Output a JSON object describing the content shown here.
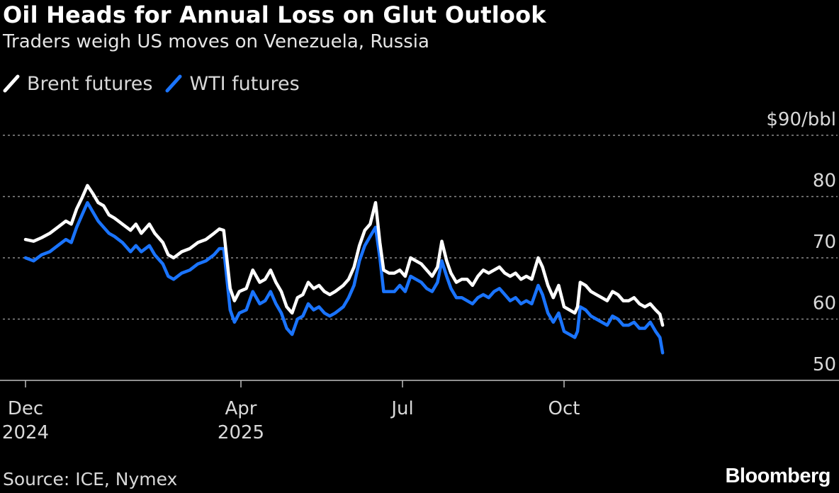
{
  "title": "Oil Heads for Annual Loss on Glut Outlook",
  "subtitle": "Traders weigh US moves on Venezuela, Russia",
  "source": "Source: ICE, Nymex",
  "brand": "Bloomberg",
  "colors": {
    "background": "#000000",
    "brent": "#ffffff",
    "wti": "#1a74ff",
    "grid": "#8c8c8c",
    "text": "#d9d9d9"
  },
  "chart_data": {
    "type": "line",
    "title": "Oil Heads for Annual Loss on Glut Outlook",
    "subtitle": "Traders weigh US moves on Venezuela, Russia",
    "xlabel": "",
    "ylabel": "$/bbl",
    "ylim": [
      50,
      90
    ],
    "yticks": [
      50,
      60,
      70,
      80,
      90
    ],
    "ytick_labels": [
      "50",
      "60",
      "70",
      "80",
      "$90/bbl"
    ],
    "grid": true,
    "legend_placement": "top-left",
    "x_ticks": [
      {
        "month_index": 0,
        "label": "Dec",
        "year": "2024"
      },
      {
        "month_index": 4,
        "label": "Apr",
        "year": "2025"
      },
      {
        "month_index": 7,
        "label": "Jul",
        "year": ""
      },
      {
        "month_index": 10,
        "label": "Oct",
        "year": ""
      }
    ],
    "x_unit": "months since Dec 1, 2024",
    "series": [
      {
        "name": "Brent futures",
        "color": "#ffffff",
        "points": [
          [
            0.0,
            73.0
          ],
          [
            0.15,
            72.7
          ],
          [
            0.3,
            73.3
          ],
          [
            0.45,
            74.0
          ],
          [
            0.6,
            75.0
          ],
          [
            0.75,
            76.0
          ],
          [
            0.85,
            75.5
          ],
          [
            0.95,
            78.0
          ],
          [
            1.05,
            79.8
          ],
          [
            1.15,
            81.8
          ],
          [
            1.25,
            80.5
          ],
          [
            1.35,
            79.0
          ],
          [
            1.45,
            78.5
          ],
          [
            1.55,
            77.0
          ],
          [
            1.65,
            76.5
          ],
          [
            1.8,
            75.5
          ],
          [
            1.95,
            74.5
          ],
          [
            2.05,
            75.5
          ],
          [
            2.15,
            74.0
          ],
          [
            2.3,
            75.5
          ],
          [
            2.4,
            74.0
          ],
          [
            2.55,
            72.5
          ],
          [
            2.65,
            70.5
          ],
          [
            2.75,
            70.0
          ],
          [
            2.9,
            71.0
          ],
          [
            3.05,
            71.5
          ],
          [
            3.2,
            72.5
          ],
          [
            3.35,
            73.0
          ],
          [
            3.5,
            74.0
          ],
          [
            3.6,
            74.7
          ],
          [
            3.68,
            74.5
          ],
          [
            3.8,
            65.0
          ],
          [
            3.88,
            63.0
          ],
          [
            3.97,
            64.5
          ],
          [
            4.1,
            65.0
          ],
          [
            4.22,
            68.0
          ],
          [
            4.35,
            66.0
          ],
          [
            4.45,
            66.5
          ],
          [
            4.55,
            68.0
          ],
          [
            4.65,
            66.0
          ],
          [
            4.75,
            64.5
          ],
          [
            4.85,
            62.0
          ],
          [
            4.95,
            61.0
          ],
          [
            5.05,
            63.5
          ],
          [
            5.15,
            64.0
          ],
          [
            5.25,
            66.0
          ],
          [
            5.35,
            65.0
          ],
          [
            5.45,
            65.5
          ],
          [
            5.55,
            64.5
          ],
          [
            5.65,
            64.0
          ],
          [
            5.75,
            64.5
          ],
          [
            5.9,
            65.5
          ],
          [
            6.0,
            66.5
          ],
          [
            6.1,
            68.5
          ],
          [
            6.2,
            72.0
          ],
          [
            6.3,
            74.5
          ],
          [
            6.4,
            75.5
          ],
          [
            6.5,
            79.0
          ],
          [
            6.58,
            72.5
          ],
          [
            6.65,
            68.0
          ],
          [
            6.75,
            67.5
          ],
          [
            6.85,
            67.5
          ],
          [
            6.95,
            68.0
          ],
          [
            7.05,
            67.0
          ],
          [
            7.15,
            70.0
          ],
          [
            7.25,
            69.5
          ],
          [
            7.35,
            69.0
          ],
          [
            7.45,
            68.0
          ],
          [
            7.55,
            67.0
          ],
          [
            7.65,
            68.5
          ],
          [
            7.73,
            72.7
          ],
          [
            7.82,
            69.5
          ],
          [
            7.9,
            67.5
          ],
          [
            8.0,
            66.0
          ],
          [
            8.1,
            66.5
          ],
          [
            8.2,
            66.5
          ],
          [
            8.3,
            65.5
          ],
          [
            8.4,
            67.0
          ],
          [
            8.5,
            68.0
          ],
          [
            8.6,
            67.5
          ],
          [
            8.7,
            68.0
          ],
          [
            8.8,
            68.5
          ],
          [
            8.9,
            67.5
          ],
          [
            9.0,
            67.0
          ],
          [
            9.1,
            67.5
          ],
          [
            9.2,
            66.5
          ],
          [
            9.3,
            67.0
          ],
          [
            9.4,
            66.5
          ],
          [
            9.52,
            70.0
          ],
          [
            9.6,
            68.5
          ],
          [
            9.7,
            65.5
          ],
          [
            9.8,
            63.5
          ],
          [
            9.9,
            65.5
          ],
          [
            10.0,
            62.0
          ],
          [
            10.1,
            61.5
          ],
          [
            10.2,
            61.0
          ],
          [
            10.25,
            62.0
          ],
          [
            10.3,
            66.0
          ],
          [
            10.4,
            65.5
          ],
          [
            10.5,
            64.5
          ],
          [
            10.6,
            64.0
          ],
          [
            10.7,
            63.5
          ],
          [
            10.8,
            63.0
          ],
          [
            10.9,
            64.5
          ],
          [
            11.0,
            64.0
          ],
          [
            11.1,
            63.0
          ],
          [
            11.2,
            63.0
          ],
          [
            11.3,
            63.5
          ],
          [
            11.4,
            62.5
          ],
          [
            11.5,
            62.0
          ],
          [
            11.6,
            62.5
          ],
          [
            11.7,
            61.5
          ],
          [
            11.78,
            60.8
          ],
          [
            11.83,
            59.0
          ]
        ]
      },
      {
        "name": "WTI futures",
        "color": "#1a74ff",
        "points": [
          [
            0.0,
            70.0
          ],
          [
            0.15,
            69.5
          ],
          [
            0.3,
            70.5
          ],
          [
            0.45,
            71.0
          ],
          [
            0.6,
            72.0
          ],
          [
            0.75,
            73.0
          ],
          [
            0.85,
            72.5
          ],
          [
            0.95,
            75.0
          ],
          [
            1.05,
            77.0
          ],
          [
            1.15,
            79.0
          ],
          [
            1.25,
            77.5
          ],
          [
            1.35,
            76.0
          ],
          [
            1.45,
            75.0
          ],
          [
            1.55,
            74.0
          ],
          [
            1.65,
            73.5
          ],
          [
            1.8,
            72.5
          ],
          [
            1.95,
            71.0
          ],
          [
            2.05,
            72.0
          ],
          [
            2.15,
            71.0
          ],
          [
            2.3,
            72.0
          ],
          [
            2.4,
            70.5
          ],
          [
            2.55,
            69.0
          ],
          [
            2.65,
            67.0
          ],
          [
            2.75,
            66.5
          ],
          [
            2.9,
            67.5
          ],
          [
            3.05,
            68.0
          ],
          [
            3.2,
            69.0
          ],
          [
            3.35,
            69.5
          ],
          [
            3.5,
            70.5
          ],
          [
            3.6,
            71.5
          ],
          [
            3.68,
            71.5
          ],
          [
            3.8,
            61.5
          ],
          [
            3.88,
            59.5
          ],
          [
            3.97,
            61.0
          ],
          [
            4.1,
            61.5
          ],
          [
            4.22,
            64.5
          ],
          [
            4.35,
            62.5
          ],
          [
            4.45,
            63.0
          ],
          [
            4.55,
            64.5
          ],
          [
            4.65,
            62.5
          ],
          [
            4.75,
            61.0
          ],
          [
            4.85,
            58.5
          ],
          [
            4.95,
            57.5
          ],
          [
            5.05,
            60.0
          ],
          [
            5.15,
            60.5
          ],
          [
            5.25,
            62.5
          ],
          [
            5.35,
            61.5
          ],
          [
            5.45,
            62.0
          ],
          [
            5.55,
            61.0
          ],
          [
            5.65,
            60.5
          ],
          [
            5.75,
            61.0
          ],
          [
            5.9,
            62.0
          ],
          [
            6.0,
            63.5
          ],
          [
            6.1,
            65.5
          ],
          [
            6.2,
            69.5
          ],
          [
            6.3,
            72.0
          ],
          [
            6.4,
            73.5
          ],
          [
            6.5,
            75.0
          ],
          [
            6.58,
            70.0
          ],
          [
            6.65,
            64.5
          ],
          [
            6.75,
            64.5
          ],
          [
            6.85,
            64.5
          ],
          [
            6.95,
            65.5
          ],
          [
            7.05,
            64.5
          ],
          [
            7.15,
            67.0
          ],
          [
            7.25,
            66.5
          ],
          [
            7.35,
            66.0
          ],
          [
            7.45,
            65.0
          ],
          [
            7.55,
            64.5
          ],
          [
            7.65,
            66.0
          ],
          [
            7.73,
            69.5
          ],
          [
            7.82,
            67.0
          ],
          [
            7.9,
            65.0
          ],
          [
            8.0,
            63.5
          ],
          [
            8.1,
            63.5
          ],
          [
            8.2,
            63.0
          ],
          [
            8.3,
            62.5
          ],
          [
            8.4,
            63.5
          ],
          [
            8.5,
            64.0
          ],
          [
            8.6,
            63.5
          ],
          [
            8.7,
            64.5
          ],
          [
            8.8,
            65.0
          ],
          [
            8.9,
            64.0
          ],
          [
            9.0,
            63.0
          ],
          [
            9.1,
            63.5
          ],
          [
            9.2,
            62.5
          ],
          [
            9.3,
            63.0
          ],
          [
            9.4,
            62.5
          ],
          [
            9.52,
            65.5
          ],
          [
            9.6,
            64.0
          ],
          [
            9.7,
            61.0
          ],
          [
            9.8,
            59.5
          ],
          [
            9.9,
            61.0
          ],
          [
            10.0,
            58.0
          ],
          [
            10.1,
            57.5
          ],
          [
            10.2,
            57.0
          ],
          [
            10.25,
            58.0
          ],
          [
            10.3,
            62.0
          ],
          [
            10.4,
            61.5
          ],
          [
            10.5,
            60.5
          ],
          [
            10.6,
            60.0
          ],
          [
            10.7,
            59.5
          ],
          [
            10.8,
            59.0
          ],
          [
            10.9,
            60.5
          ],
          [
            11.0,
            60.0
          ],
          [
            11.1,
            59.0
          ],
          [
            11.2,
            59.0
          ],
          [
            11.3,
            59.5
          ],
          [
            11.4,
            58.5
          ],
          [
            11.5,
            58.5
          ],
          [
            11.6,
            59.5
          ],
          [
            11.7,
            58.0
          ],
          [
            11.78,
            57.0
          ],
          [
            11.83,
            54.5
          ]
        ]
      }
    ]
  }
}
